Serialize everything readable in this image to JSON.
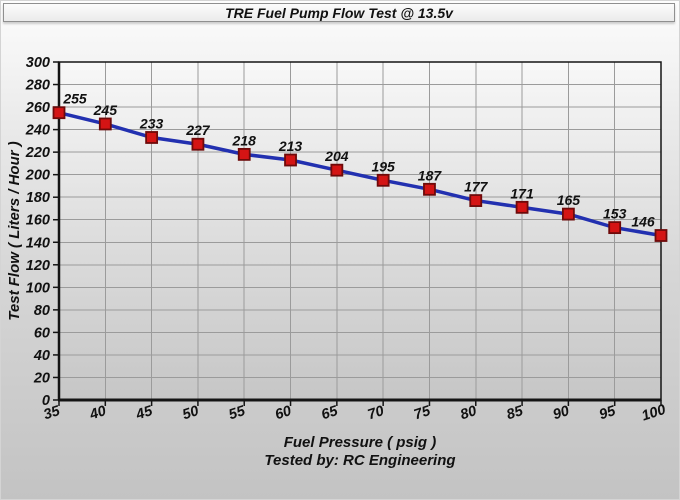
{
  "window": {
    "title": "TRE Fuel Pump Flow Test @ 13.5v"
  },
  "chart_data": {
    "type": "line",
    "title": "TRE Fuel Pump Flow Test @ 13.5v",
    "x": [
      35,
      40,
      45,
      50,
      55,
      60,
      65,
      70,
      75,
      80,
      85,
      90,
      95,
      100
    ],
    "values": [
      255,
      245,
      233,
      227,
      218,
      213,
      204,
      195,
      187,
      177,
      171,
      165,
      153,
      146
    ],
    "yticks": [
      0,
      20,
      40,
      60,
      80,
      100,
      120,
      140,
      160,
      180,
      200,
      220,
      240,
      260,
      280,
      300
    ],
    "ylim": [
      0,
      300
    ],
    "xlabel": "Fuel Pressure ( psig )",
    "ylabel": "Test Flow ( Liters / Hour )",
    "footnote": "Tested by: RC Engineering",
    "grid": true,
    "legend": "none",
    "marker_shape": "square",
    "data_labels": true,
    "colors": {
      "line": "#2230b0",
      "marker_fill": "#d41414",
      "marker_border": "#6e0a0a",
      "grid": "#9b9b9b",
      "axis": "#141414",
      "text": "#111111"
    }
  }
}
